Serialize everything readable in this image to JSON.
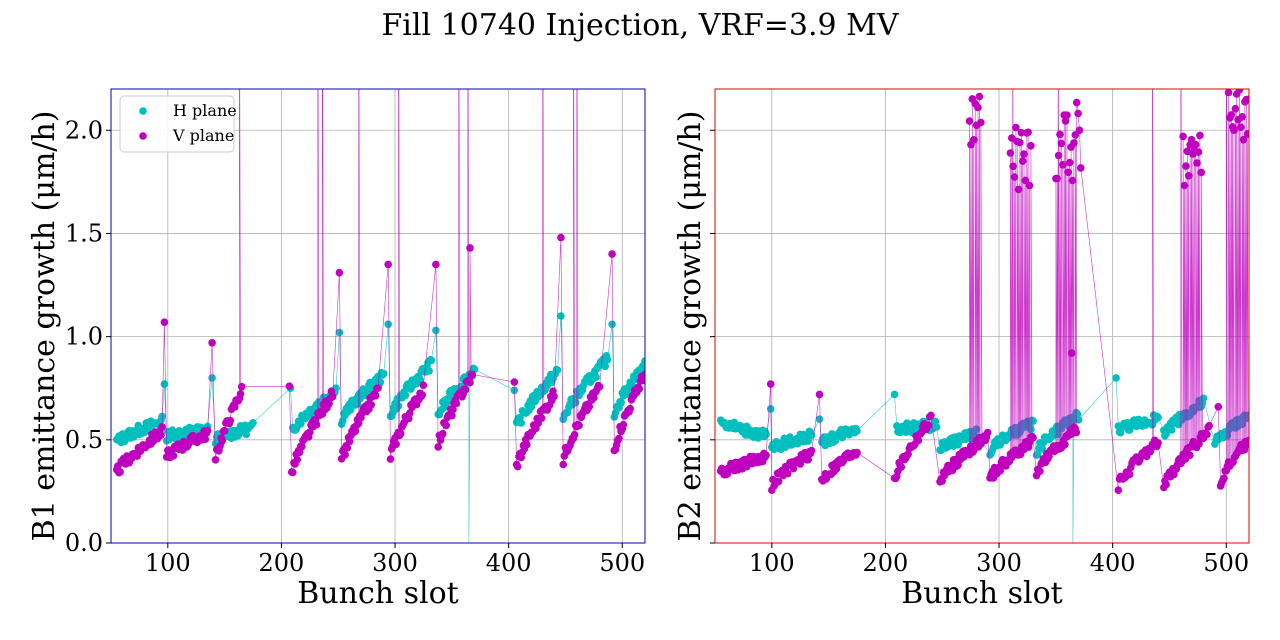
{
  "title": "Fill 10740 Injection, VRF=3.9 MV",
  "colors": {
    "h": "#00bfbf",
    "v": "#bf00bf",
    "grid": "#b0b0b0",
    "b1_frame": "#0000aa",
    "b2_frame": "#dd0000"
  },
  "chart_data": [
    {
      "type": "scatter",
      "xlabel": "Bunch slot",
      "ylabel": "B1 emittance growth (μm/h)",
      "xlim": [
        50,
        520
      ],
      "ylim": [
        0,
        2.2
      ],
      "xticks": [
        100,
        200,
        300,
        400,
        500
      ],
      "yticks": [
        0.0,
        0.5,
        1.0,
        1.5,
        2.0
      ],
      "ytick_labels": [
        "0.0",
        "0.5",
        "1.0",
        "1.5",
        "2.0"
      ],
      "grid": true,
      "legend": {
        "position": "top-left",
        "entries": [
          "H plane",
          "V plane"
        ]
      },
      "series": [
        {
          "name": "H plane",
          "segments": [
            {
              "x_start": 55,
              "x_end": 95,
              "y_start": 0.49,
              "y_end": 0.59
            },
            {
              "x_start": 97,
              "x_end": 97,
              "y_start": 0.77,
              "y_end": 0.77
            },
            {
              "x_start": 99,
              "x_end": 135,
              "y_start": 0.52,
              "y_end": 0.55
            },
            {
              "x_start": 139,
              "x_end": 139,
              "y_start": 0.8,
              "y_end": 0.8
            },
            {
              "x_start": 142,
              "x_end": 175,
              "y_start": 0.5,
              "y_end": 0.56
            },
            {
              "x_start": 208,
              "x_end": 208,
              "y_start": 0.75,
              "y_end": 0.75
            },
            {
              "x_start": 210,
              "x_end": 248,
              "y_start": 0.55,
              "y_end": 0.74
            },
            {
              "x_start": 251,
              "x_end": 251,
              "y_start": 1.02,
              "y_end": 1.02
            },
            {
              "x_start": 253,
              "x_end": 290,
              "y_start": 0.6,
              "y_end": 0.81
            },
            {
              "x_start": 294,
              "x_end": 294,
              "y_start": 1.06,
              "y_end": 1.06
            },
            {
              "x_start": 296,
              "x_end": 332,
              "y_start": 0.62,
              "y_end": 0.87
            },
            {
              "x_start": 336,
              "x_end": 336,
              "y_start": 1.03,
              "y_end": 1.03
            },
            {
              "x_start": 338,
              "x_end": 370,
              "y_start": 0.62,
              "y_end": 0.84
            },
            {
              "x_start": 405,
              "x_end": 405,
              "y_start": 0.74,
              "y_end": 0.74
            },
            {
              "x_start": 407,
              "x_end": 443,
              "y_start": 0.56,
              "y_end": 0.83
            },
            {
              "x_start": 446,
              "x_end": 446,
              "y_start": 1.1,
              "y_end": 1.1
            },
            {
              "x_start": 448,
              "x_end": 487,
              "y_start": 0.6,
              "y_end": 0.89
            },
            {
              "x_start": 491,
              "x_end": 491,
              "y_start": 1.06,
              "y_end": 1.06
            },
            {
              "x_start": 493,
              "x_end": 520,
              "y_start": 0.63,
              "y_end": 0.86
            }
          ],
          "excursions": [
            {
              "x": 365,
              "y": 0.0
            }
          ]
        },
        {
          "name": "V plane",
          "segments": [
            {
              "x_start": 55,
              "x_end": 95,
              "y_start": 0.34,
              "y_end": 0.54
            },
            {
              "x_start": 97,
              "x_end": 97,
              "y_start": 1.07,
              "y_end": 1.07
            },
            {
              "x_start": 99,
              "x_end": 135,
              "y_start": 0.42,
              "y_end": 0.53
            },
            {
              "x_start": 139,
              "x_end": 139,
              "y_start": 0.97,
              "y_end": 0.97
            },
            {
              "x_start": 142,
              "x_end": 165,
              "y_start": 0.4,
              "y_end": 0.74
            },
            {
              "x_start": 207,
              "x_end": 207,
              "y_start": 0.76,
              "y_end": 0.76
            },
            {
              "x_start": 209,
              "x_end": 245,
              "y_start": 0.34,
              "y_end": 0.72
            },
            {
              "x_start": 251,
              "x_end": 251,
              "y_start": 1.31,
              "y_end": 1.31
            },
            {
              "x_start": 253,
              "x_end": 285,
              "y_start": 0.4,
              "y_end": 0.74
            },
            {
              "x_start": 294,
              "x_end": 294,
              "y_start": 1.35,
              "y_end": 1.35
            },
            {
              "x_start": 296,
              "x_end": 325,
              "y_start": 0.42,
              "y_end": 0.75
            },
            {
              "x_start": 336,
              "x_end": 336,
              "y_start": 1.35,
              "y_end": 1.35
            },
            {
              "x_start": 338,
              "x_end": 368,
              "y_start": 0.48,
              "y_end": 0.81
            },
            {
              "x_start": 366,
              "x_end": 366,
              "y_start": 1.43,
              "y_end": 1.43
            },
            {
              "x_start": 405,
              "x_end": 405,
              "y_start": 0.78,
              "y_end": 0.78
            },
            {
              "x_start": 407,
              "x_end": 440,
              "y_start": 0.37,
              "y_end": 0.72
            },
            {
              "x_start": 446,
              "x_end": 446,
              "y_start": 1.48,
              "y_end": 1.48
            },
            {
              "x_start": 448,
              "x_end": 480,
              "y_start": 0.4,
              "y_end": 0.76
            },
            {
              "x_start": 491,
              "x_end": 491,
              "y_start": 1.4,
              "y_end": 1.4
            },
            {
              "x_start": 493,
              "x_end": 520,
              "y_start": 0.45,
              "y_end": 0.82
            }
          ],
          "excursions": [
            {
              "x": 163,
              "y": 3.0
            },
            {
              "x": 232,
              "y": 3.0
            },
            {
              "x": 236,
              "y": 3.0
            },
            {
              "x": 268,
              "y": 3.0
            },
            {
              "x": 303,
              "y": 3.0
            },
            {
              "x": 356,
              "y": 3.0
            },
            {
              "x": 364,
              "y": 3.0
            },
            {
              "x": 430,
              "y": 3.0
            },
            {
              "x": 457,
              "y": 3.0
            },
            {
              "x": 460,
              "y": 3.0
            }
          ]
        }
      ]
    },
    {
      "type": "scatter",
      "xlabel": "Bunch slot",
      "ylabel": "B2 emittance growth (μm/h)",
      "xlim": [
        50,
        520
      ],
      "ylim": [
        0,
        2.2
      ],
      "xticks": [
        100,
        200,
        300,
        400,
        500
      ],
      "yticks": [
        0.0,
        0.5,
        1.0,
        1.5,
        2.0
      ],
      "grid": true,
      "series": [
        {
          "name": "H plane",
          "segments": [
            {
              "x_start": 55,
              "x_end": 95,
              "y_start": 0.59,
              "y_end": 0.52
            },
            {
              "x_start": 99,
              "x_end": 99,
              "y_start": 0.65,
              "y_end": 0.65
            },
            {
              "x_start": 100,
              "x_end": 135,
              "y_start": 0.46,
              "y_end": 0.52
            },
            {
              "x_start": 142,
              "x_end": 142,
              "y_start": 0.6,
              "y_end": 0.6
            },
            {
              "x_start": 144,
              "x_end": 175,
              "y_start": 0.48,
              "y_end": 0.56
            },
            {
              "x_start": 208,
              "x_end": 208,
              "y_start": 0.72,
              "y_end": 0.72
            },
            {
              "x_start": 210,
              "x_end": 245,
              "y_start": 0.55,
              "y_end": 0.57
            },
            {
              "x_start": 248,
              "x_end": 280,
              "y_start": 0.46,
              "y_end": 0.53
            },
            {
              "x_start": 292,
              "x_end": 330,
              "y_start": 0.45,
              "y_end": 0.58
            },
            {
              "x_start": 333,
              "x_end": 370,
              "y_start": 0.44,
              "y_end": 0.62
            },
            {
              "x_start": 403,
              "x_end": 403,
              "y_start": 0.8,
              "y_end": 0.8
            },
            {
              "x_start": 405,
              "x_end": 440,
              "y_start": 0.55,
              "y_end": 0.6
            },
            {
              "x_start": 445,
              "x_end": 480,
              "y_start": 0.53,
              "y_end": 0.68
            },
            {
              "x_start": 490,
              "x_end": 520,
              "y_start": 0.48,
              "y_end": 0.62
            }
          ],
          "excursions": [
            {
              "x": 365,
              "y": 0.0
            }
          ]
        },
        {
          "name": "V plane",
          "segments": [
            {
              "x_start": 55,
              "x_end": 95,
              "y_start": 0.34,
              "y_end": 0.42
            },
            {
              "x_start": 99,
              "x_end": 99,
              "y_start": 0.77,
              "y_end": 0.77
            },
            {
              "x_start": 100,
              "x_end": 135,
              "y_start": 0.28,
              "y_end": 0.44
            },
            {
              "x_start": 142,
              "x_end": 142,
              "y_start": 0.72,
              "y_end": 0.72
            },
            {
              "x_start": 144,
              "x_end": 175,
              "y_start": 0.3,
              "y_end": 0.45
            },
            {
              "x_start": 208,
              "x_end": 240,
              "y_start": 0.31,
              "y_end": 0.6
            },
            {
              "x_start": 248,
              "x_end": 290,
              "y_start": 0.3,
              "y_end": 0.52
            },
            {
              "x_start": 292,
              "x_end": 330,
              "y_start": 0.31,
              "y_end": 0.5
            },
            {
              "x_start": 333,
              "x_end": 368,
              "y_start": 0.34,
              "y_end": 0.55
            },
            {
              "x_start": 405,
              "x_end": 440,
              "y_start": 0.28,
              "y_end": 0.49
            },
            {
              "x_start": 445,
              "x_end": 485,
              "y_start": 0.27,
              "y_end": 0.55
            },
            {
              "x_start": 493,
              "x_end": 493,
              "y_start": 0.66,
              "y_end": 0.66
            },
            {
              "x_start": 495,
              "x_end": 520,
              "y_start": 0.3,
              "y_end": 0.5
            }
          ],
          "clusters": [
            {
              "x_start": 274,
              "x_end": 284,
              "y_min": 1.92,
              "y_max": 2.19
            },
            {
              "x_start": 310,
              "x_end": 328,
              "y_min": 1.68,
              "y_max": 2.02
            },
            {
              "x_start": 350,
              "x_end": 372,
              "y_min": 1.72,
              "y_max": 2.15
            },
            {
              "x_start": 462,
              "x_end": 478,
              "y_min": 1.72,
              "y_max": 2.08
            },
            {
              "x_start": 502,
              "x_end": 520,
              "y_min": 1.95,
              "y_max": 2.2
            }
          ],
          "excursions": [
            {
              "x": 312,
              "y": 3.0
            },
            {
              "x": 352,
              "y": 3.0
            },
            {
              "x": 364,
              "y": 0.92
            },
            {
              "x": 435,
              "y": 3.0
            },
            {
              "x": 460,
              "y": 3.0
            },
            {
              "x": 500,
              "y": 3.0
            }
          ]
        }
      ]
    }
  ]
}
